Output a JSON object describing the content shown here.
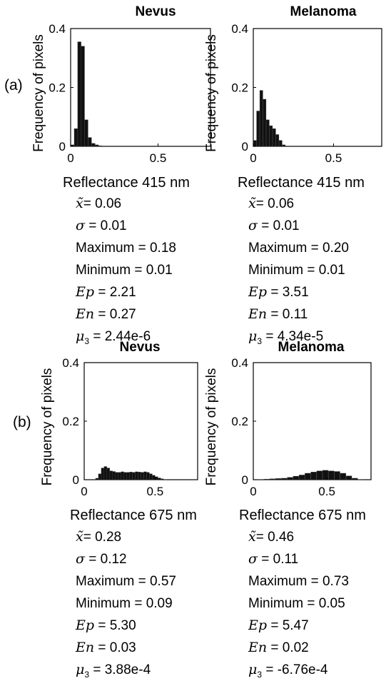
{
  "panel_labels": [
    "(a)",
    "(b)"
  ],
  "chart_data": [
    {
      "type": "bar",
      "title": "Nevus",
      "xlabel": "Reflectance 415 nm",
      "ylabel": "Frequency of pixels",
      "xlim": [
        0,
        0.8
      ],
      "ylim": [
        0,
        0.4
      ],
      "xticks": [
        "0",
        "0.5"
      ],
      "yticks": [
        "0",
        "0.2",
        "0.4"
      ],
      "x": [
        0.01,
        0.03,
        0.05,
        0.07,
        0.09,
        0.11,
        0.13,
        0.15,
        0.17
      ],
      "values": [
        0.005,
        0.06,
        0.355,
        0.34,
        0.09,
        0.03,
        0.01,
        0.005,
        0.002
      ],
      "stats": {
        "median": "0.06",
        "sigma": "0.01",
        "maximum": "0.18",
        "minimum": "0.01",
        "ep": "2.21",
        "en": "0.27",
        "mu3": "2.44e-6"
      }
    },
    {
      "type": "bar",
      "title": "Melanoma",
      "xlabel": "Reflectance 415 nm",
      "ylabel": "Frequency of pixels",
      "xlim": [
        0,
        0.8
      ],
      "ylim": [
        0,
        0.4
      ],
      "xticks": [
        "0",
        "0.5"
      ],
      "yticks": [
        "0",
        "0.2",
        "0.4"
      ],
      "x": [
        0.01,
        0.03,
        0.05,
        0.07,
        0.09,
        0.11,
        0.13,
        0.15,
        0.17,
        0.19
      ],
      "values": [
        0.02,
        0.12,
        0.19,
        0.16,
        0.09,
        0.07,
        0.06,
        0.04,
        0.02,
        0.005
      ],
      "stats": {
        "median": "0.06",
        "sigma": "0.01",
        "maximum": "0.20",
        "minimum": "0.01",
        "ep": "3.51",
        "en": "0.11",
        "mu3": "4.34e-5"
      }
    },
    {
      "type": "bar",
      "title": "Nevus",
      "xlabel": "Reflectance 675 nm",
      "ylabel": "Frequency of pixels",
      "xlim": [
        0,
        0.8
      ],
      "ylim": [
        0,
        0.4
      ],
      "xticks": [
        "0",
        "0.5"
      ],
      "yticks": [
        "0",
        "0.2",
        "0.4"
      ],
      "x": [
        0.09,
        0.11,
        0.13,
        0.15,
        0.17,
        0.19,
        0.21,
        0.23,
        0.25,
        0.27,
        0.29,
        0.31,
        0.33,
        0.35,
        0.37,
        0.39,
        0.41,
        0.43,
        0.45,
        0.47,
        0.49,
        0.51,
        0.53,
        0.55,
        0.57
      ],
      "values": [
        0.005,
        0.02,
        0.04,
        0.045,
        0.04,
        0.03,
        0.028,
        0.025,
        0.025,
        0.027,
        0.025,
        0.025,
        0.026,
        0.025,
        0.027,
        0.026,
        0.025,
        0.027,
        0.025,
        0.02,
        0.015,
        0.01,
        0.006,
        0.003,
        0.001
      ],
      "stats": {
        "median": "0.28",
        "sigma": "0.12",
        "maximum": "0.57",
        "minimum": "0.09",
        "ep": "5.30",
        "en": "0.03",
        "mu3": "3.88e-4"
      }
    },
    {
      "type": "bar",
      "title": "Melanoma",
      "xlabel": "Reflectance 675 nm",
      "ylabel": "Frequency of pixels",
      "xlim": [
        0,
        0.8
      ],
      "ylim": [
        0,
        0.4
      ],
      "xticks": [
        "0",
        "0.5"
      ],
      "yticks": [
        "0",
        "0.2",
        "0.4"
      ],
      "x": [
        0.05,
        0.09,
        0.13,
        0.17,
        0.21,
        0.25,
        0.29,
        0.33,
        0.37,
        0.41,
        0.45,
        0.49,
        0.53,
        0.57,
        0.61,
        0.65,
        0.69,
        0.73
      ],
      "values": [
        0.001,
        0.002,
        0.003,
        0.004,
        0.005,
        0.008,
        0.012,
        0.016,
        0.022,
        0.026,
        0.03,
        0.032,
        0.03,
        0.028,
        0.022,
        0.013,
        0.005,
        0.001
      ],
      "stats": {
        "median": "0.46",
        "sigma": "0.11",
        "maximum": "0.73",
        "minimum": "0.05",
        "ep": "5.47",
        "en": "0.02",
        "mu3": "-6.76e-4"
      }
    }
  ],
  "stat_labels": {
    "median": "x̃",
    "sigma": "σ",
    "maximum": "Maximum",
    "minimum": "Minimum",
    "ep": "Ep",
    "en": "En",
    "mu3": "μ",
    "mu3_sub": "3"
  }
}
